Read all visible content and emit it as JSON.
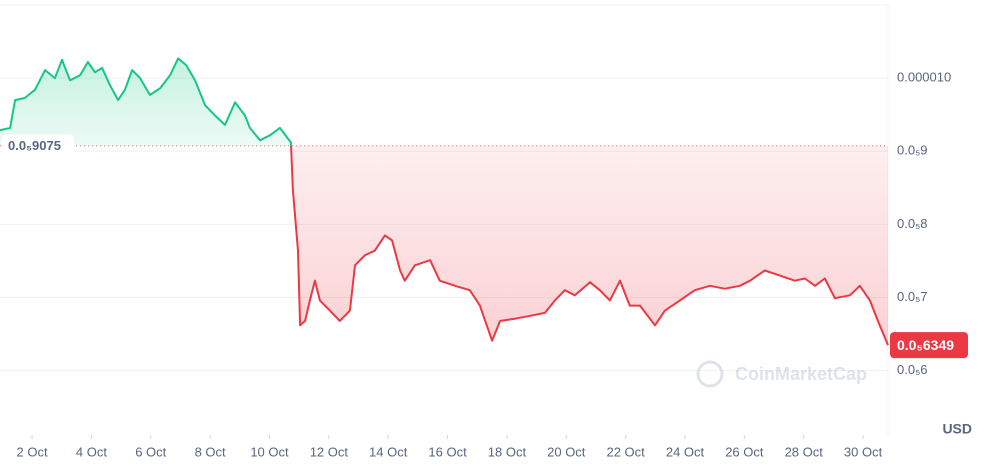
{
  "chart_data": {
    "type": "line",
    "y_axis_label": "USD",
    "watermark": "CoinMarketCap",
    "xlim": [
      0.92,
      30.84
    ],
    "ylim": [
      5.12e-06,
      1.1e-05
    ],
    "xticks": [
      {
        "value": 2,
        "label": "2 Oct"
      },
      {
        "value": 4,
        "label": "4 Oct"
      },
      {
        "value": 6,
        "label": "6 Oct"
      },
      {
        "value": 8,
        "label": "8 Oct"
      },
      {
        "value": 10,
        "label": "10 Oct"
      },
      {
        "value": 12,
        "label": "12 Oct"
      },
      {
        "value": 14,
        "label": "14 Oct"
      },
      {
        "value": 16,
        "label": "16 Oct"
      },
      {
        "value": 18,
        "label": "18 Oct"
      },
      {
        "value": 20,
        "label": "20 Oct"
      },
      {
        "value": 22,
        "label": "22 Oct"
      },
      {
        "value": 24,
        "label": "24 Oct"
      },
      {
        "value": 26,
        "label": "26 Oct"
      },
      {
        "value": 28,
        "label": "28 Oct"
      },
      {
        "value": 30,
        "label": "30 Oct"
      }
    ],
    "yticks": [
      {
        "value": 6e-06,
        "label": "0.0₅6"
      },
      {
        "value": 7e-06,
        "label": "0.0₅7"
      },
      {
        "value": 8e-06,
        "label": "0.0₅8"
      },
      {
        "value": 9e-06,
        "label": "0.0₅9"
      },
      {
        "value": 1e-05,
        "label": "0.000010"
      }
    ],
    "grid": true,
    "reference": {
      "value": 9.075e-06,
      "label": "0.0₅9075"
    },
    "last_price": {
      "value": 6.349e-06,
      "label": "0.0₅6349"
    },
    "colors": {
      "up": "#16c784",
      "down": "#ea3943"
    },
    "x": [
      0.92,
      1.26,
      1.43,
      1.76,
      2.1,
      2.44,
      2.77,
      3.01,
      3.28,
      3.62,
      3.88,
      4.12,
      4.36,
      4.63,
      4.9,
      5.13,
      5.37,
      5.64,
      5.97,
      6.31,
      6.65,
      6.92,
      7.19,
      7.49,
      7.83,
      8.16,
      8.5,
      8.84,
      9.17,
      9.34,
      9.68,
      10.02,
      10.35,
      10.72,
      10.79,
      10.96,
      11.03,
      11.2,
      11.36,
      11.53,
      11.7,
      12.04,
      12.37,
      12.71,
      12.88,
      13.22,
      13.55,
      13.89,
      14.13,
      14.4,
      14.56,
      14.9,
      15.41,
      15.74,
      16.25,
      16.75,
      17.09,
      17.5,
      17.77,
      18.27,
      18.78,
      19.28,
      19.62,
      19.95,
      20.29,
      20.8,
      21.13,
      21.47,
      21.81,
      22.14,
      22.48,
      22.99,
      23.32,
      23.83,
      24.33,
      24.84,
      25.34,
      25.85,
      26.19,
      26.69,
      27.2,
      27.7,
      28.04,
      28.38,
      28.71,
      29.05,
      29.56,
      29.89,
      30.23,
      30.5,
      30.84
    ],
    "values": [
      9.29e-06,
      9.32e-06,
      9.7e-06,
      9.73e-06,
      9.84e-06,
      1.011e-05,
      1e-05,
      1.025e-05,
      9.97e-06,
      1.004e-05,
      1.022e-05,
      1.008e-05,
      1.014e-05,
      9.9e-06,
      9.7e-06,
      9.84e-06,
      1.011e-05,
      1e-05,
      9.77e-06,
      9.86e-06,
      1.004e-05,
      1.027e-05,
      1.018e-05,
      9.97e-06,
      9.63e-06,
      9.49e-06,
      9.36e-06,
      9.67e-06,
      9.49e-06,
      9.32e-06,
      9.15e-06,
      9.22e-06,
      9.32e-06,
      9.12e-06,
      8.47e-06,
      7.64e-06,
      6.62e-06,
      6.68e-06,
      6.96e-06,
      7.23e-06,
      6.96e-06,
      6.82e-06,
      6.68e-06,
      6.82e-06,
      7.44e-06,
      7.58e-06,
      7.64e-06,
      7.85e-06,
      7.78e-06,
      7.37e-06,
      7.23e-06,
      7.44e-06,
      7.51e-06,
      7.23e-06,
      7.16e-06,
      7.1e-06,
      6.89e-06,
      6.41e-06,
      6.68e-06,
      6.71e-06,
      6.75e-06,
      6.79e-06,
      6.96e-06,
      7.1e-06,
      7.03e-06,
      7.21e-06,
      7.1e-06,
      6.96e-06,
      7.23e-06,
      6.89e-06,
      6.89e-06,
      6.62e-06,
      6.82e-06,
      6.96e-06,
      7.1e-06,
      7.16e-06,
      7.12e-06,
      7.16e-06,
      7.23e-06,
      7.37e-06,
      7.3e-06,
      7.23e-06,
      7.26e-06,
      7.16e-06,
      7.26e-06,
      6.99e-06,
      7.03e-06,
      7.16e-06,
      6.96e-06,
      6.68e-06,
      6.349e-06
    ]
  }
}
